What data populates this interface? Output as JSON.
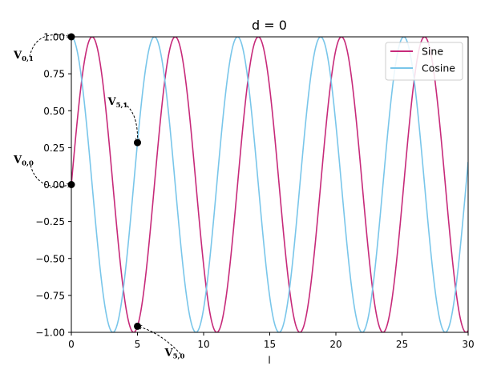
{
  "chart_data": {
    "type": "line",
    "title": "d = 0",
    "xlabel": "l",
    "ylabel": "",
    "xlim": [
      0,
      30
    ],
    "ylim": [
      -1.0,
      1.0
    ],
    "x_ticks": [
      0,
      5,
      10,
      15,
      20,
      25,
      30
    ],
    "x_tick_labels": [
      "0",
      "5",
      "10",
      "15",
      "20",
      "25",
      "30"
    ],
    "y_ticks": [
      -1.0,
      -0.75,
      -0.5,
      -0.25,
      0.0,
      0.25,
      0.5,
      0.75,
      1.0
    ],
    "y_tick_labels": [
      "−1.00",
      "−0.75",
      "−0.50",
      "−0.25",
      "0.00",
      "0.25",
      "0.50",
      "0.75",
      "1.00"
    ],
    "grid": false,
    "legend_position": "top-right",
    "series": [
      {
        "name": "Sine",
        "function": "sin(l)",
        "color": "#c72a7a"
      },
      {
        "name": "Cosine",
        "function": "cos(l)",
        "color": "#79c6ea"
      }
    ],
    "points": [
      {
        "x": 0,
        "y": 0.0,
        "label": "V",
        "sub": "0,0"
      },
      {
        "x": 0,
        "y": 1.0,
        "label": "V",
        "sub": "0,1"
      },
      {
        "x": 5,
        "y": -0.959,
        "label": "V",
        "sub": "5,0"
      },
      {
        "x": 5,
        "y": 0.284,
        "label": "V",
        "sub": "5,1"
      }
    ]
  }
}
